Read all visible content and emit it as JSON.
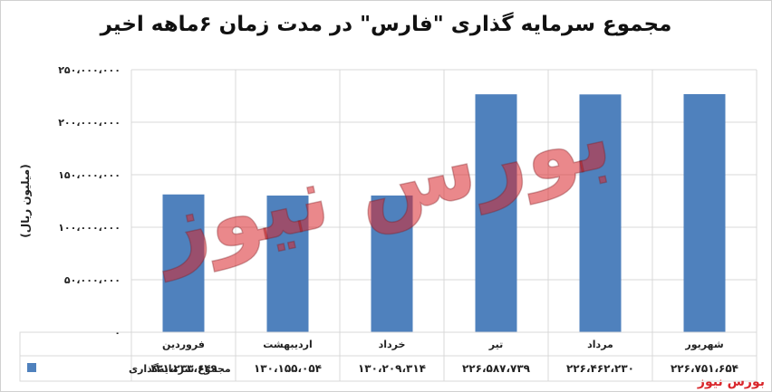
{
  "chart_data": {
    "type": "bar",
    "title": "مجموع سرمایه گذاری \"فارس\" در مدت زمان ۶ماهه اخیر",
    "ylabel": "(میلیون ریال)",
    "categories": [
      "فروردین",
      "اردیبهشت",
      "خرداد",
      "تیر",
      "مرداد",
      "شهریور"
    ],
    "series": [
      {
        "name": "مجموع سرمایه‌گذاری",
        "values": [
          131233649,
          130155054,
          130209314,
          226587739,
          226462230,
          226751654
        ],
        "value_labels": [
          "۱۳۱،۲۳۳،۶۴۹",
          "۱۳۰،۱۵۵،۰۵۴",
          "۱۳۰،۲۰۹،۳۱۴",
          "۲۲۶،۵۸۷،۷۳۹",
          "۲۲۶،۴۶۲،۲۳۰",
          "۲۲۶،۷۵۱،۶۵۴"
        ],
        "color": "#4f81bd"
      }
    ],
    "ylim": [
      0,
      250000000
    ],
    "yticks": [
      0,
      50000000,
      100000000,
      150000000,
      200000000,
      250000000
    ],
    "ytick_labels": [
      "۰",
      "۵۰،۰۰۰،۰۰۰",
      "۱۰۰،۰۰۰،۰۰۰",
      "۱۵۰،۰۰۰،۰۰۰",
      "۲۰۰،۰۰۰،۰۰۰",
      "۲۵۰،۰۰۰،۰۰۰"
    ],
    "grid": true,
    "legend": "data-table"
  },
  "watermark": "بورس نیوز",
  "source_logo": "بورس نیوز",
  "colors": {
    "bar": "#4f81bd",
    "watermark": "#d9262b",
    "grid": "#d9d9d9"
  }
}
